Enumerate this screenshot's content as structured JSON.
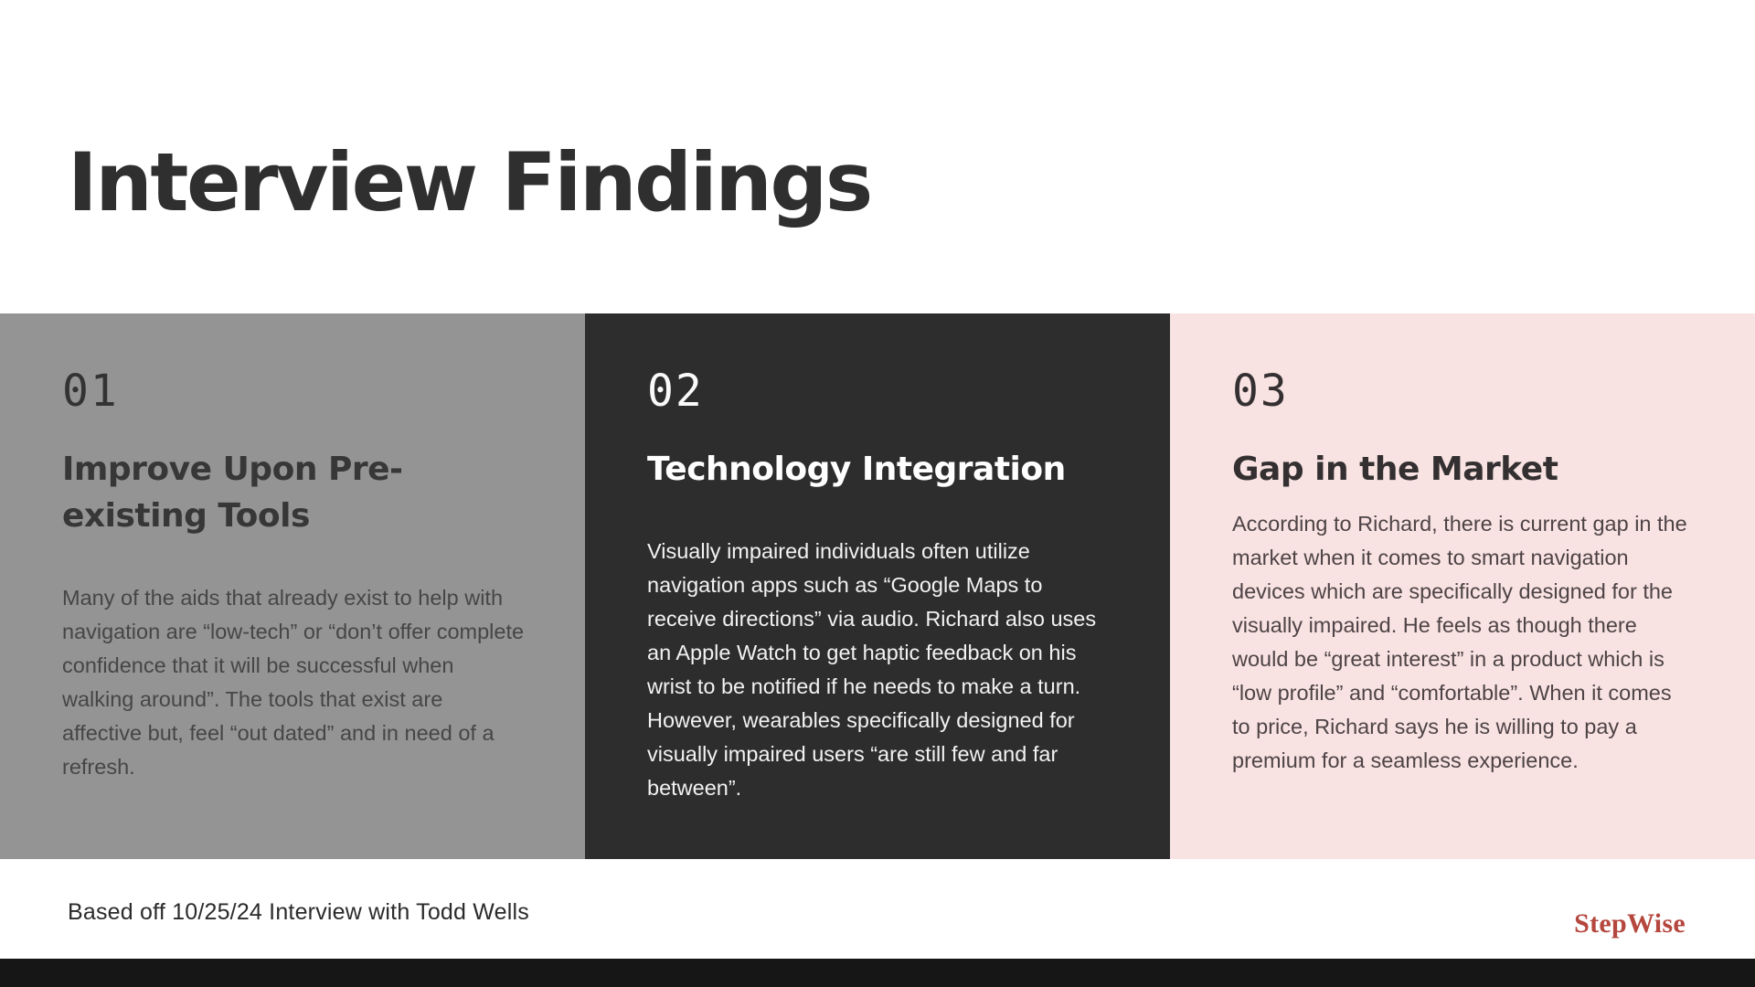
{
  "slide": {
    "title": "Interview Findings",
    "cards": [
      {
        "number": "01",
        "heading": "Improve Upon Pre-existing Tools",
        "body": "Many of the aids that already exist to help with navigation are “low-tech” or “don’t offer complete confidence that it will be successful when walking around”. The tools that exist are affective but, feel “out dated” and in need of a refresh."
      },
      {
        "number": "02",
        "heading": "Technology Integration",
        "body": "Visually impaired individuals often utilize navigation apps such as “Google Maps to receive directions” via audio. Richard also uses an Apple Watch to get haptic feedback on his wrist to be notified if he needs to make a turn. However, wearables specifically designed for visually impaired users “are still  few and far between”."
      },
      {
        "number": "03",
        "heading": "Gap in the Market",
        "body": "According to Richard, there is current gap in the market when it comes to smart navigation devices which are specifically designed for the visually impaired. He feels as though there would be “great interest”  in a product which is “low profile” and “comfortable”.  When it comes to price, Richard says he is willing to pay a premium for a seamless experience."
      }
    ],
    "footer": {
      "note": "Based off 10/25/24 Interview with Todd Wells",
      "brand": "StepWise"
    },
    "colors": {
      "title": "#2f2f2f",
      "card1_bg": "#949494",
      "card2_bg": "#2e2d2e",
      "card3_bg": "#f8e3e2",
      "brand": "#b5473e",
      "bottom_bar": "#161616"
    }
  }
}
